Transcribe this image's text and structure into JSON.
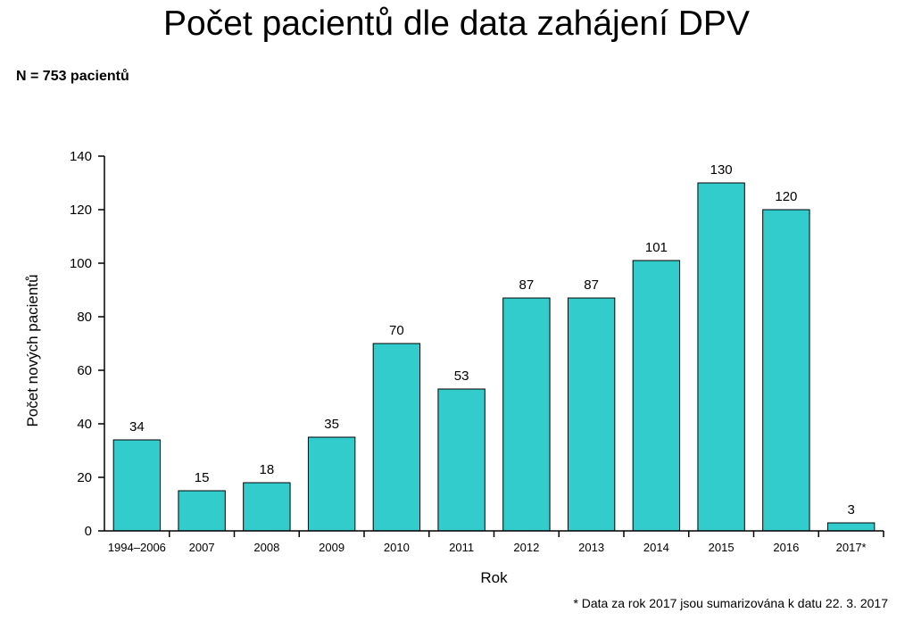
{
  "chart_data": {
    "type": "bar",
    "title": "Počet pacientů dle data zahájení DPV",
    "subtitle": "N = 753 pacientů",
    "xlabel": "Rok",
    "ylabel": "Počet nových pacientů",
    "footnote": "* Data za rok 2017 jsou sumarizována k datu 22. 3. 2017",
    "categories": [
      "1994–2006",
      "2007",
      "2008",
      "2009",
      "2010",
      "2011",
      "2012",
      "2013",
      "2014",
      "2015",
      "2016",
      "2017*"
    ],
    "values": [
      34,
      15,
      18,
      35,
      70,
      53,
      87,
      87,
      101,
      130,
      120,
      3
    ],
    "ylim": [
      0,
      140
    ],
    "yticks": [
      0,
      20,
      40,
      60,
      80,
      100,
      120,
      140
    ],
    "bar_color": "#33CCCC",
    "grid": false
  }
}
